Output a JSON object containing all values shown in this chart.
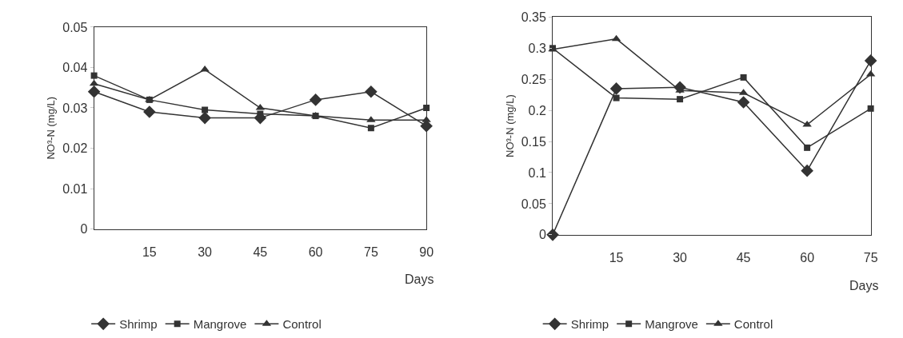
{
  "chart_data": [
    {
      "type": "line",
      "xlabel": "Days",
      "ylabel": "NO³-N (mg/L)",
      "x": [
        0,
        15,
        30,
        45,
        60,
        75,
        90
      ],
      "xlim": [
        0,
        90
      ],
      "xticks": [
        15,
        30,
        45,
        60,
        75,
        90
      ],
      "ylim": [
        0,
        0.05
      ],
      "yticks": [
        0,
        0.01,
        0.02,
        0.03,
        0.04,
        0.05
      ],
      "legend": "bottom",
      "line_style": "solid",
      "series": [
        {
          "name": "Shrimp",
          "color": "#333333",
          "marker": "diamond",
          "values": [
            0.034,
            0.029,
            0.0275,
            0.0275,
            0.032,
            0.034,
            0.0255
          ]
        },
        {
          "name": "Mangrove",
          "color": "#333333",
          "marker": "square",
          "values": [
            0.038,
            0.032,
            0.0295,
            0.0285,
            0.028,
            0.025,
            0.03
          ]
        },
        {
          "name": "Control",
          "color": "#333333",
          "marker": "triangle",
          "values": [
            0.036,
            0.032,
            0.0395,
            0.03,
            0.028,
            0.027,
            0.027
          ]
        }
      ]
    },
    {
      "type": "line",
      "xlabel": "Days",
      "ylabel": "NO³-N (mg/L)",
      "x": [
        0,
        15,
        30,
        45,
        60,
        75
      ],
      "xlim": [
        0,
        75
      ],
      "xticks": [
        15,
        30,
        45,
        60,
        75
      ],
      "ylim": [
        0,
        0.35
      ],
      "yticks": [
        0,
        0.05,
        0.1,
        0.15,
        0.2,
        0.25,
        0.3,
        0.35
      ],
      "legend": "bottom",
      "line_style": "solid",
      "series": [
        {
          "name": "Shrimp",
          "color": "#333333",
          "marker": "diamond",
          "values": [
            0,
            0.235,
            0.237,
            0.213,
            0.103,
            0.28
          ]
        },
        {
          "name": "Mangrove",
          "color": "#333333",
          "marker": "square",
          "values": [
            0.3,
            0.22,
            0.218,
            0.253,
            0.14,
            0.203
          ]
        },
        {
          "name": "Control",
          "color": "#333333",
          "marker": "triangle",
          "values": [
            0.298,
            0.315,
            0.232,
            0.228,
            0.177,
            0.258
          ]
        }
      ]
    }
  ]
}
